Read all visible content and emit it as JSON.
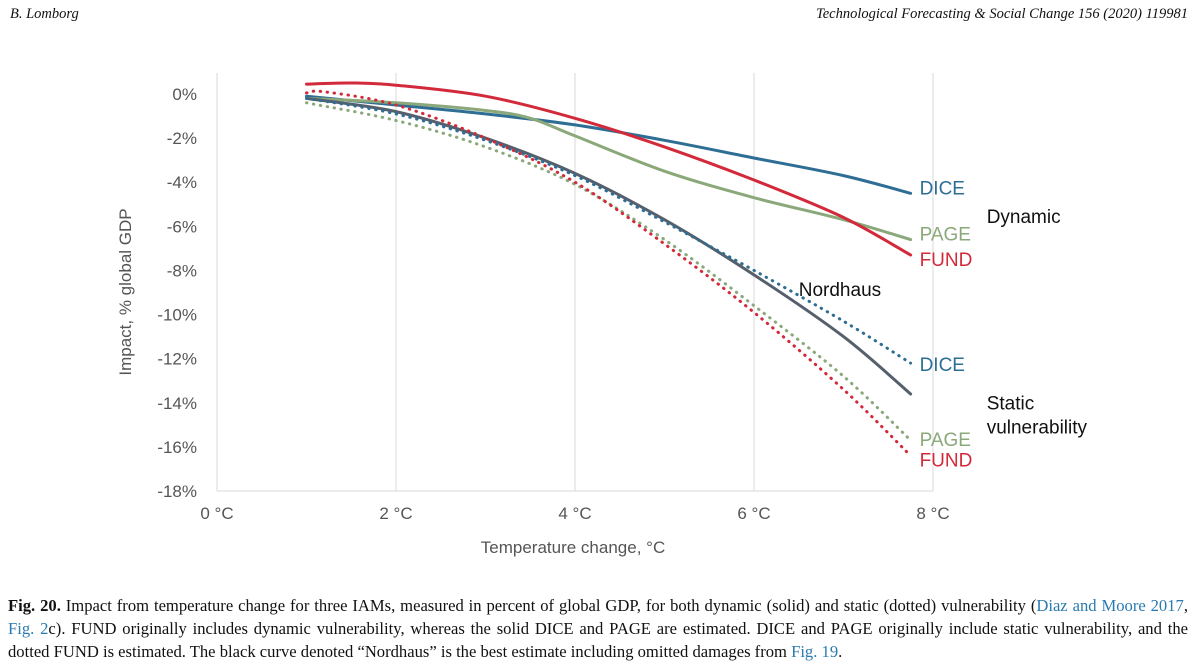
{
  "header": {
    "author": "B. Lomborg",
    "journal": "Technological Forecasting & Social Change 156 (2020) 119981"
  },
  "chart_data": {
    "type": "line",
    "xlabel": "Temperature change, °C",
    "ylabel": "Impact, % global GDP",
    "xlim": [
      0,
      8
    ],
    "ylim": [
      -18,
      1
    ],
    "x_ticks": [
      {
        "value": 0,
        "label": "0 °C"
      },
      {
        "value": 2,
        "label": "2 °C"
      },
      {
        "value": 4,
        "label": "4 °C"
      },
      {
        "value": 6,
        "label": "6 °C"
      },
      {
        "value": 8,
        "label": "8 °C"
      }
    ],
    "y_ticks": [
      {
        "value": 0,
        "label": "0%"
      },
      {
        "value": -2,
        "label": "-2%"
      },
      {
        "value": -4,
        "label": "-4%"
      },
      {
        "value": -6,
        "label": "-6%"
      },
      {
        "value": -8,
        "label": "-8%"
      },
      {
        "value": -10,
        "label": "-10%"
      },
      {
        "value": -12,
        "label": "-12%"
      },
      {
        "value": -14,
        "label": "-14%"
      },
      {
        "value": -16,
        "label": "-16%"
      },
      {
        "value": -18,
        "label": "-18%"
      }
    ],
    "series": [
      {
        "name": "DICE",
        "group": "dynamic",
        "style": "solid",
        "color": "#2e6e95",
        "x": [
          1,
          2,
          3,
          4,
          5,
          6,
          7,
          7.75
        ],
        "y": [
          -0.1,
          -0.5,
          -0.9,
          -1.4,
          -2.1,
          -2.9,
          -3.7,
          -4.5
        ]
      },
      {
        "name": "PAGE",
        "group": "dynamic",
        "style": "solid",
        "color": "#8aa87a",
        "x": [
          1,
          2,
          3,
          3.5,
          4,
          5,
          6,
          7,
          7.75
        ],
        "y": [
          -0.2,
          -0.4,
          -0.75,
          -1.1,
          -1.9,
          -3.5,
          -4.7,
          -5.7,
          -6.6
        ]
      },
      {
        "name": "FUND",
        "group": "dynamic",
        "style": "solid",
        "color": "#d22a3a",
        "x": [
          1,
          1.5,
          2,
          3,
          4,
          5,
          6,
          7,
          7.75
        ],
        "y": [
          0.45,
          0.5,
          0.4,
          -0.1,
          -1.1,
          -2.4,
          -3.9,
          -5.6,
          -7.3
        ]
      },
      {
        "name": "Nordhaus",
        "group": "best estimate",
        "style": "solid",
        "color": "#56606d",
        "x": [
          1,
          2,
          3,
          4,
          5,
          6,
          7,
          7.75
        ],
        "y": [
          -0.2,
          -0.8,
          -2.0,
          -3.6,
          -5.7,
          -8.2,
          -11.0,
          -13.6
        ]
      },
      {
        "name": "DICE",
        "group": "static vulnerability",
        "style": "dotted",
        "color": "#2e6e95",
        "x": [
          1,
          2,
          3,
          4,
          5,
          6,
          7,
          7.75
        ],
        "y": [
          -0.2,
          -0.9,
          -2.1,
          -3.7,
          -5.8,
          -8.0,
          -10.3,
          -12.2
        ]
      },
      {
        "name": "PAGE",
        "group": "static vulnerability",
        "style": "dotted",
        "color": "#8aa87a",
        "x": [
          1,
          2,
          3,
          4,
          5,
          6,
          7,
          7.75
        ],
        "y": [
          -0.4,
          -1.2,
          -2.4,
          -4.1,
          -6.6,
          -9.6,
          -12.8,
          -15.7
        ]
      },
      {
        "name": "FUND",
        "group": "static vulnerability",
        "style": "dotted",
        "color": "#d22a3a",
        "x": [
          1,
          1.2,
          2,
          3,
          4,
          5,
          6,
          7,
          7.75
        ],
        "y": [
          0.05,
          0.1,
          -0.5,
          -2.0,
          -4.0,
          -6.8,
          -9.9,
          -13.4,
          -16.4
        ]
      }
    ],
    "series_labels": [
      {
        "text": "DICE",
        "color": "#2e6e95",
        "at": {
          "x": 7.85,
          "y": -4.55
        }
      },
      {
        "text": "PAGE",
        "color": "#8aa87a",
        "at": {
          "x": 7.85,
          "y": -6.65
        }
      },
      {
        "text": "FUND",
        "color": "#d22a3a",
        "at": {
          "x": 7.85,
          "y": -7.8
        }
      },
      {
        "text": "DICE",
        "color": "#2e6e95",
        "at": {
          "x": 7.85,
          "y": -12.55
        }
      },
      {
        "text": "PAGE",
        "color": "#8aa87a",
        "at": {
          "x": 7.85,
          "y": -15.95
        }
      },
      {
        "text": "FUND",
        "color": "#d22a3a",
        "at": {
          "x": 7.85,
          "y": -16.9
        }
      },
      {
        "text": "Nordhaus",
        "color": "#111111",
        "at": {
          "x": 6.5,
          "y": -9.15
        }
      }
    ],
    "group_labels": [
      {
        "lines": [
          "Dynamic"
        ],
        "at": {
          "x": 8.6,
          "y": -5.85
        }
      },
      {
        "lines": [
          "Static",
          "vulnerability"
        ],
        "at": {
          "x": 8.6,
          "y": -14.3
        }
      }
    ]
  },
  "caption": {
    "fig_label": "Fig. 20.",
    "text_1": " Impact from temperature change for three IAMs, measured in percent of global GDP, for both dynamic (solid) and static (dotted) vulnerability (",
    "ref_1": "Diaz and Moore 2017",
    "text_2": ", ",
    "ref_2": "Fig. 2",
    "text_3": "c). FUND originally includes dynamic vulnerability, whereas the solid DICE and PAGE are estimated. DICE and PAGE originally include static vulnerability, and the dotted FUND is estimated. The black curve denoted “Nordhaus” is the best estimate including omitted damages from ",
    "ref_3": "Fig. 19",
    "text_4": "."
  }
}
